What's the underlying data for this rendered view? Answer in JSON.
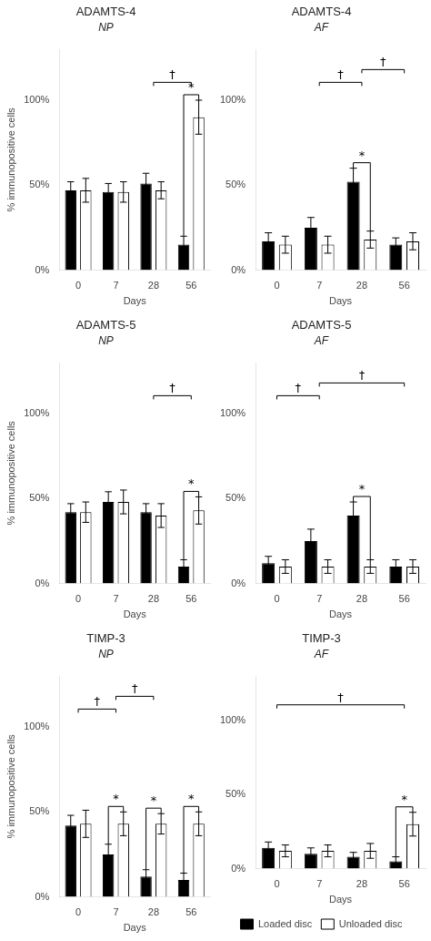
{
  "chart_data": [
    {
      "type": "bar",
      "title": "ADAMTS-4",
      "subtitle": "NP",
      "categories": [
        "0",
        "7",
        "28",
        "56"
      ],
      "xlabel": "Days",
      "ylabel": "% immunopositive cells",
      "ylim": [
        0,
        130
      ],
      "yticks": [
        {
          "value": 0,
          "label": "0%"
        },
        {
          "value": 50,
          "label": "50%"
        },
        {
          "value": 100,
          "label": "100%"
        }
      ],
      "grid": false,
      "series": [
        {
          "name": "Loaded disc",
          "color": "#000000",
          "values": [
            47,
            46,
            51,
            15
          ],
          "errors": [
            5,
            5,
            6,
            5
          ]
        },
        {
          "name": "Unloaded disc",
          "color": "#ffffff",
          "values": [
            47,
            46,
            47,
            90
          ],
          "errors": [
            7,
            6,
            5,
            10
          ]
        }
      ],
      "annotations": [
        {
          "text": "†",
          "from": "28",
          "to": "56"
        },
        {
          "text": "*",
          "at": "56"
        }
      ]
    },
    {
      "type": "bar",
      "title": "ADAMTS-4",
      "subtitle": "AF",
      "categories": [
        "0",
        "7",
        "28",
        "56"
      ],
      "xlabel": "Days",
      "ylim": [
        0,
        130
      ],
      "yticks": [
        {
          "value": 0,
          "label": "0%"
        },
        {
          "value": 50,
          "label": "50%"
        },
        {
          "value": 100,
          "label": "100%"
        }
      ],
      "grid": false,
      "series": [
        {
          "name": "Loaded disc",
          "color": "#000000",
          "values": [
            17,
            25,
            52,
            15
          ],
          "errors": [
            5,
            6,
            8,
            4
          ]
        },
        {
          "name": "Unloaded disc",
          "color": "#ffffff",
          "values": [
            15,
            15,
            18,
            17
          ],
          "errors": [
            5,
            5,
            5,
            5
          ]
        }
      ],
      "annotations": [
        {
          "text": "†",
          "from": "7",
          "to": "28"
        },
        {
          "text": "†",
          "from": "28",
          "to": "56"
        },
        {
          "text": "*",
          "at": "28"
        }
      ]
    },
    {
      "type": "bar",
      "title": "ADAMTS-5",
      "subtitle": "NP",
      "categories": [
        "0",
        "7",
        "28",
        "56"
      ],
      "xlabel": "Days",
      "ylabel": "% immunopositive cells",
      "ylim": [
        0,
        130
      ],
      "yticks": [
        {
          "value": 0,
          "label": "0%"
        },
        {
          "value": 50,
          "label": "50%"
        },
        {
          "value": 100,
          "label": "100%"
        }
      ],
      "grid": false,
      "series": [
        {
          "name": "Loaded disc",
          "color": "#000000",
          "values": [
            42,
            48,
            42,
            10
          ],
          "errors": [
            5,
            6,
            5,
            4
          ]
        },
        {
          "name": "Unloaded disc",
          "color": "#ffffff",
          "values": [
            42,
            48,
            40,
            43
          ],
          "errors": [
            6,
            7,
            7,
            8
          ]
        }
      ],
      "annotations": [
        {
          "text": "†",
          "from": "28",
          "to": "56"
        },
        {
          "text": "*",
          "at": "56"
        }
      ]
    },
    {
      "type": "bar",
      "title": "ADAMTS-5",
      "subtitle": "AF",
      "categories": [
        "0",
        "7",
        "28",
        "56"
      ],
      "xlabel": "Days",
      "ylim": [
        0,
        130
      ],
      "yticks": [
        {
          "value": 0,
          "label": "0%"
        },
        {
          "value": 50,
          "label": "50%"
        },
        {
          "value": 100,
          "label": "100%"
        }
      ],
      "grid": false,
      "series": [
        {
          "name": "Loaded disc",
          "color": "#000000",
          "values": [
            12,
            25,
            40,
            10
          ],
          "errors": [
            4,
            7,
            8,
            4
          ]
        },
        {
          "name": "Unloaded disc",
          "color": "#ffffff",
          "values": [
            10,
            10,
            10,
            10
          ],
          "errors": [
            4,
            4,
            4,
            4
          ]
        }
      ],
      "annotations": [
        {
          "text": "†",
          "from": "0",
          "to": "7"
        },
        {
          "text": "†",
          "from": "7",
          "to": "56"
        },
        {
          "text": "*",
          "at": "28"
        }
      ]
    },
    {
      "type": "bar",
      "title": "TIMP-3",
      "subtitle": "NP",
      "categories": [
        "0",
        "7",
        "28",
        "56"
      ],
      "xlabel": "Days",
      "ylabel": "% immunopositive cells",
      "ylim": [
        0,
        130
      ],
      "yticks": [
        {
          "value": 0,
          "label": "0%"
        },
        {
          "value": 50,
          "label": "50%"
        },
        {
          "value": 100,
          "label": "100%"
        }
      ],
      "grid": false,
      "series": [
        {
          "name": "Loaded disc",
          "color": "#000000",
          "values": [
            42,
            25,
            12,
            10
          ],
          "errors": [
            6,
            6,
            4,
            4
          ]
        },
        {
          "name": "Unloaded disc",
          "color": "#ffffff",
          "values": [
            43,
            43,
            43,
            43
          ],
          "errors": [
            8,
            7,
            6,
            7
          ]
        }
      ],
      "annotations": [
        {
          "text": "†",
          "from": "0",
          "to": "7"
        },
        {
          "text": "†",
          "from": "7",
          "to": "28"
        },
        {
          "text": "*",
          "at": "7"
        },
        {
          "text": "*",
          "at": "28"
        },
        {
          "text": "*",
          "at": "56"
        }
      ]
    },
    {
      "type": "bar",
      "title": "TIMP-3",
      "subtitle": "AF",
      "categories": [
        "0",
        "7",
        "28",
        "56"
      ],
      "xlabel": "Days",
      "ylim": [
        0,
        130
      ],
      "yticks": [
        {
          "value": 0,
          "label": "0%"
        },
        {
          "value": 50,
          "label": "50%"
        },
        {
          "value": 100,
          "label": "100%"
        }
      ],
      "grid": false,
      "legend": "bottom",
      "series": [
        {
          "name": "Loaded disc",
          "color": "#000000",
          "values": [
            14,
            10,
            8,
            5
          ],
          "errors": [
            4,
            4,
            3,
            3
          ]
        },
        {
          "name": "Unloaded disc",
          "color": "#ffffff",
          "values": [
            12,
            12,
            12,
            30
          ],
          "errors": [
            4,
            4,
            5,
            8
          ]
        }
      ],
      "annotations": [
        {
          "text": "†",
          "from": "0",
          "to": "56"
        },
        {
          "text": "*",
          "at": "56"
        }
      ]
    }
  ]
}
